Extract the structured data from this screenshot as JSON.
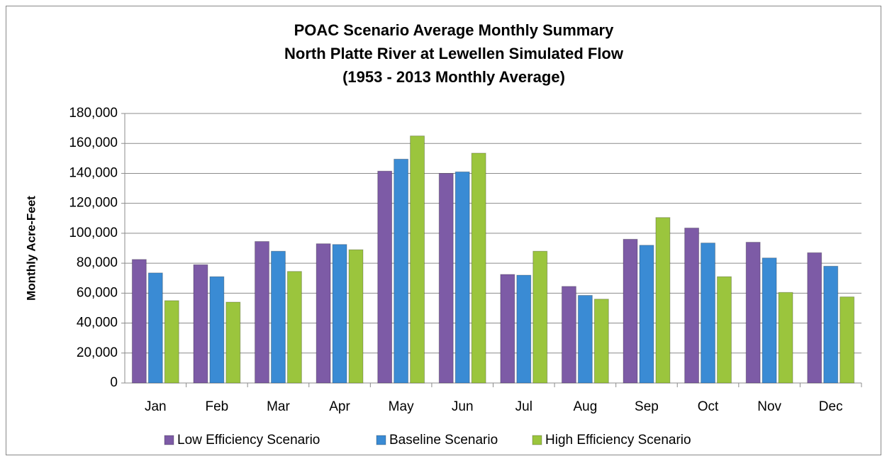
{
  "chart_data": {
    "type": "bar",
    "title": [
      "POAC Scenario Average  Monthly Summary",
      "North Platte River at Lewellen Simulated Flow",
      "(1953 - 2013 Monthly Average)"
    ],
    "y_label": "Monthly Acre-Feet",
    "categories": [
      "Jan",
      "Feb",
      "Mar",
      "Apr",
      "May",
      "Jun",
      "Jul",
      "Aug",
      "Sep",
      "Oct",
      "Nov",
      "Dec"
    ],
    "series": [
      {
        "name": "Low Efficiency Scenario",
        "color": "#7d5ba6",
        "values": [
          82500,
          79000,
          94500,
          93000,
          141500,
          140000,
          72500,
          64500,
          96000,
          103500,
          94000,
          87000
        ]
      },
      {
        "name": "Baseline Scenario",
        "color": "#3a8bd4",
        "values": [
          73500,
          71000,
          88000,
          92500,
          149500,
          141000,
          72000,
          58500,
          92000,
          93500,
          83500,
          78000
        ]
      },
      {
        "name": "High Efficiency Scenario",
        "color": "#9bc53d",
        "values": [
          55000,
          54000,
          74500,
          89000,
          165000,
          153500,
          88000,
          56000,
          110500,
          71000,
          60500,
          57500
        ]
      }
    ],
    "ylim": [
      0,
      180000
    ],
    "yticks": [
      0,
      {
        "value": 20000,
        "label": "20,000"
      },
      {
        "value": 40000,
        "label": "40,000"
      },
      {
        "value": 60000,
        "label": "60,000"
      },
      {
        "value": 80000,
        "label": "80,000"
      },
      {
        "value": 100000,
        "label": "100,000"
      },
      {
        "value": 120000,
        "label": "120,000"
      },
      {
        "value": 140000,
        "label": "140,000"
      },
      {
        "value": 160000,
        "label": "160,000"
      },
      {
        "value": 180000,
        "label": "180,000"
      }
    ],
    "grid": true,
    "legend": "bottom"
  }
}
